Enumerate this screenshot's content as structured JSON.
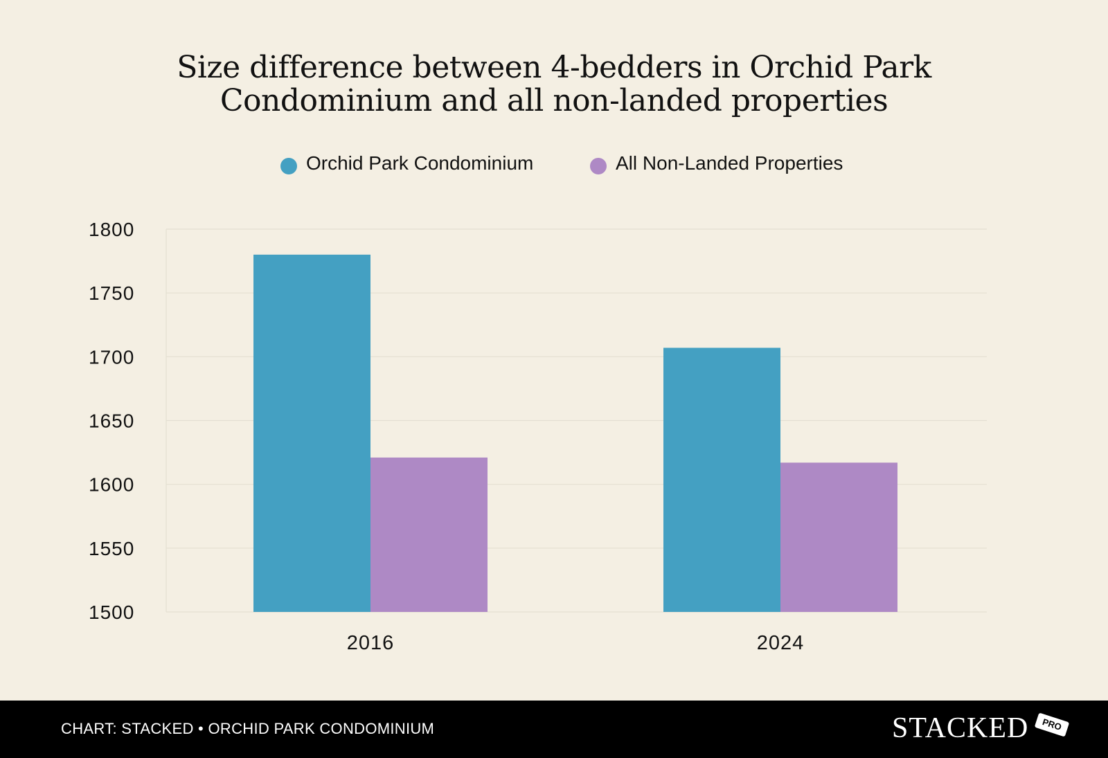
{
  "chart_data": {
    "type": "bar",
    "title_lines": [
      "Size difference between 4-bedders in Orchid Park",
      "Condominium and all non-landed properties"
    ],
    "categories": [
      "2016",
      "2024"
    ],
    "series": [
      {
        "name": "Orchid Park Condominium",
        "values": [
          1780,
          1707
        ],
        "color": "#44a0c2"
      },
      {
        "name": "All Non-Landed Properties",
        "values": [
          1621,
          1617
        ],
        "color": "#ae89c5"
      }
    ],
    "ylim": [
      1500,
      1800
    ],
    "yticks": [
      1800,
      1750,
      1700,
      1650,
      1600,
      1550,
      1500
    ],
    "grid": true,
    "legend_position": "top-center"
  },
  "footer": {
    "source": "CHART: STACKED • ORCHID PARK CONDOMINIUM",
    "logo_text": "STACKED",
    "logo_badge": "PRO"
  },
  "colors": {
    "background": "#f4efe3",
    "gridline": "#e4dfd2",
    "text": "#111111",
    "footer_bg": "#000000"
  }
}
